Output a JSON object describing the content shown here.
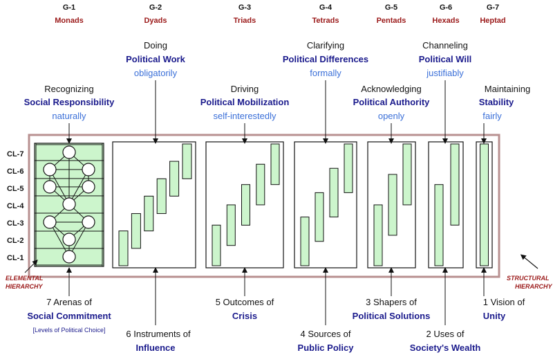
{
  "groups": [
    {
      "id": "G-1",
      "name": "Monads",
      "verb": "Recognizing",
      "concept": "Social Responsibility",
      "adverb": "naturally",
      "bottom1": "7 Arenas of",
      "bottom2": "Social Commitment",
      "note": "[Levels of Political Choice]",
      "bars": 7
    },
    {
      "id": "G-2",
      "name": "Dyads",
      "verb": "Doing",
      "concept": "Political Work",
      "adverb": "obligatorily",
      "bottom1": "6 Instruments of",
      "bottom2": "Influence",
      "bars": 6
    },
    {
      "id": "G-3",
      "name": "Triads",
      "verb": "Driving",
      "concept": "Political Mobilization",
      "adverb": "self-interestedly",
      "bottom1": "5 Outcomes of",
      "bottom2": "Crisis",
      "bars": 5
    },
    {
      "id": "G-4",
      "name": "Tetrads",
      "verb": "Clarifying",
      "concept": "Political Differences",
      "adverb": "formally",
      "bottom1": "4 Sources of",
      "bottom2": "Public Policy",
      "bars": 4
    },
    {
      "id": "G-5",
      "name": "Pentads",
      "verb": "Acknowledging",
      "concept": "Political Authority",
      "adverb": "openly",
      "bottom1": "3 Shapers of",
      "bottom2": "Political Solutions",
      "bars": 3
    },
    {
      "id": "G-6",
      "name": "Hexads",
      "verb": "Channeling",
      "concept": "Political Will",
      "adverb": "justifiably",
      "bottom1": "2 Uses of",
      "bottom2": "Society's Wealth",
      "bars": 2
    },
    {
      "id": "G-7",
      "name": "Heptad",
      "verb": "Maintaining",
      "concept": "Stability",
      "adverb": "fairly",
      "bottom1": "1 Vision of",
      "bottom2": "Unity",
      "bars": 1
    }
  ],
  "levels": [
    "CL-7",
    "CL-6",
    "CL-5",
    "CL-4",
    "CL-3",
    "CL-2",
    "CL-1"
  ],
  "labels": {
    "elemental_1": "ELEMENTAL",
    "elemental_2": "HIERARCHY",
    "structural_1": "STRUCTURAL",
    "structural_2": "HIERARCHY"
  },
  "colors": {
    "bar_fill": "#ccf5cc",
    "frame": "#b89090",
    "concept": "#1a1a8c",
    "adverb": "#3a6fd8",
    "group_name": "#9b1a1a"
  }
}
